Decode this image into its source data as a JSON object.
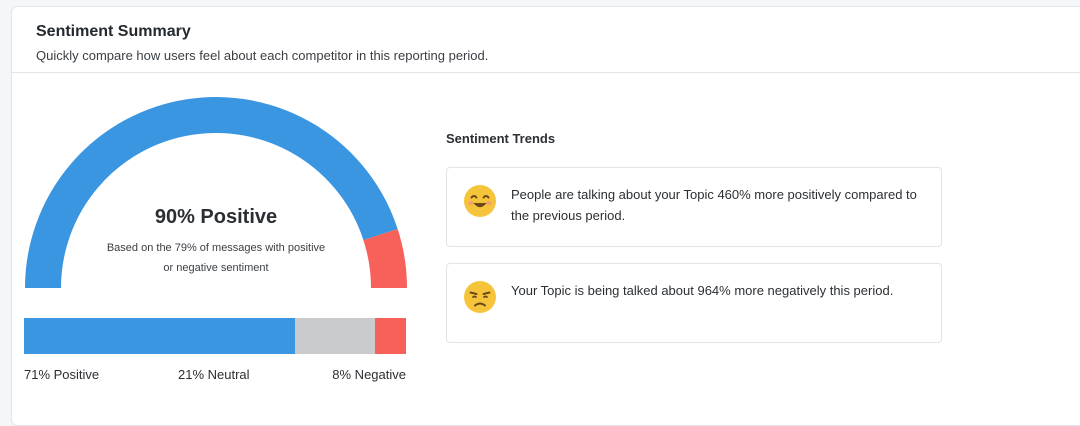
{
  "header": {
    "title": "Sentiment Summary",
    "subtitle": "Quickly compare how users feel about each competitor in this reporting period."
  },
  "gauge": {
    "value_text": "90% Positive",
    "note": "Based on the 79% of messages with positive or negative sentiment",
    "positive_fraction": 0.9,
    "positive_color": "#3b96e2",
    "negative_color": "#f8605a"
  },
  "breakdown": {
    "segments": [
      {
        "key": "positive",
        "percent": 71,
        "color": "#3b96e2"
      },
      {
        "key": "neutral",
        "percent": 21,
        "color": "#c9cbcd"
      },
      {
        "key": "negative",
        "percent": 8,
        "color": "#f8605a"
      }
    ],
    "labels": {
      "positive": "71% Positive",
      "neutral": "21% Neutral",
      "negative": "8% Negative"
    }
  },
  "trends": {
    "title": "Sentiment Trends",
    "items": [
      {
        "icon": "happy-face-icon",
        "text": "People are talking about your Topic 460% more positively compared to the previous period."
      },
      {
        "icon": "unhappy-face-icon",
        "text": "Your Topic is being talked about 964% more negatively this period."
      }
    ]
  }
}
